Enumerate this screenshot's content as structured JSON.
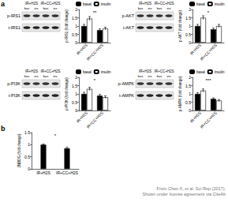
{
  "panel_labels": [
    "a",
    "b"
  ],
  "blots": [
    {
      "rows": [
        "p-IRS1",
        "t-IRS1"
      ],
      "groups": [
        "IR+H2S",
        "IR+CC+H2S"
      ],
      "lanes": [
        "bas",
        "ins",
        "bas",
        "ins"
      ]
    },
    {
      "rows": [
        "p-AKT",
        "t-AKT"
      ],
      "groups": [
        "IR+H2S",
        "IR+CC+H2S"
      ],
      "lanes": [
        "bas",
        "ins",
        "bas",
        "ins"
      ]
    },
    {
      "rows": [
        "p-PI3K",
        "t-PI3K"
      ],
      "groups": [
        "IR+H2S",
        "IR+CC+H2S"
      ],
      "lanes": [
        "bas",
        "ins",
        "bas",
        "ins"
      ]
    },
    {
      "rows": [
        "p-AMPK",
        "t-AMPK"
      ],
      "groups": [
        "IR+H2S",
        "IR+CC+H2S"
      ],
      "lanes": [
        "bas",
        "ins",
        "bas",
        "ins"
      ]
    }
  ],
  "credit": [
    "From Chen X, et al. Sci Rep (2017).",
    "Shown under license agreement via CiteAb"
  ],
  "chart_data": [
    {
      "type": "bar",
      "y_label": "p-IRS1 (fold change)",
      "categories": [
        "IR+H2S",
        "IR+CC+H2S"
      ],
      "series": [
        {
          "name": "basal",
          "color": "#000000",
          "values": [
            1.0,
            0.75
          ],
          "errors": [
            0.1,
            0.08
          ]
        },
        {
          "name": "insulin",
          "color": "#ffffff",
          "values": [
            1.45,
            0.85
          ],
          "errors": [
            0.12,
            0.08
          ]
        }
      ],
      "ylim": [
        0,
        2
      ],
      "yticks": [
        0,
        0.5,
        1,
        1.5,
        2
      ],
      "legend": "upper left",
      "annotations": [
        "**"
      ]
    },
    {
      "type": "bar",
      "y_label": "p-AKT (fold change)",
      "categories": [
        "IR+H2S",
        "IR+CC+H2S"
      ],
      "series": [
        {
          "name": "basal",
          "color": "#000000",
          "values": [
            1.0,
            0.8
          ],
          "errors": [
            0.1,
            0.08
          ]
        },
        {
          "name": "insulin",
          "color": "#ffffff",
          "values": [
            1.5,
            1.0
          ],
          "errors": [
            0.12,
            0.1
          ]
        }
      ],
      "ylim": [
        0,
        2
      ],
      "yticks": [
        0,
        0.5,
        1,
        1.5,
        2
      ],
      "legend": "upper left",
      "annotations": [
        "*"
      ]
    },
    {
      "type": "bar",
      "y_label": "p-PI3K (fold change)",
      "categories": [
        "IR+H2S",
        "IR+CC+H2S"
      ],
      "series": [
        {
          "name": "basal",
          "color": "#000000",
          "values": [
            1.0,
            0.9
          ],
          "errors": [
            0.1,
            0.08
          ]
        },
        {
          "name": "insulin",
          "color": "#ffffff",
          "values": [
            1.3,
            0.8
          ],
          "errors": [
            0.1,
            0.08
          ]
        }
      ],
      "ylim": [
        0,
        2
      ],
      "yticks": [
        0,
        0.5,
        1,
        1.5,
        2
      ],
      "legend": "upper left",
      "annotations": [
        "*"
      ]
    },
    {
      "type": "bar",
      "y_label": "p-AMPK (fold change)",
      "categories": [
        "IR+H2S",
        "IR+CC+H2S"
      ],
      "series": [
        {
          "name": "basal",
          "color": "#000000",
          "values": [
            1.0,
            0.7
          ],
          "errors": [
            0.08,
            0.06
          ]
        },
        {
          "name": "insulin",
          "color": "#ffffff",
          "values": [
            1.2,
            0.6
          ],
          "errors": [
            0.1,
            0.06
          ]
        }
      ],
      "ylim": [
        0,
        2
      ],
      "yticks": [
        0,
        0.5,
        1,
        1.5,
        2
      ],
      "legend": "upper left",
      "annotations": [
        "***"
      ]
    },
    {
      "type": "bar",
      "y_label": "2NBDG (fold change)",
      "categories": [
        "IR+H2S",
        "IR+CC+H2S"
      ],
      "values": [
        1.0,
        0.85
      ],
      "errors": [
        0.03,
        0.05
      ],
      "color": "#000000",
      "ylim": [
        0,
        1.5
      ],
      "yticks": [
        0,
        0.5,
        1,
        1.5
      ],
      "annotations": [
        "*"
      ]
    }
  ]
}
